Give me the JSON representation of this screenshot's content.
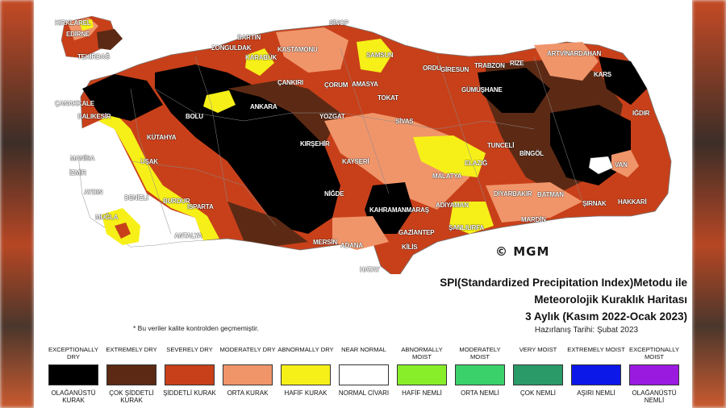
{
  "map": {
    "provinces": [
      {
        "name": "KIRKLAREL"
      },
      {
        "name": "EDİRNE"
      },
      {
        "name": "TEKİRDAĞ"
      },
      {
        "name": "BARTIN"
      },
      {
        "name": "ZONGULDAK"
      },
      {
        "name": "KARABÜK"
      },
      {
        "name": "KASTAMONU"
      },
      {
        "name": "SİNOP"
      },
      {
        "name": "SAMSUN"
      },
      {
        "name": "ORDU"
      },
      {
        "name": "GİRESUN"
      },
      {
        "name": "TRABZON"
      },
      {
        "name": "RİZE"
      },
      {
        "name": "ARTVİN"
      },
      {
        "name": "ARDAHAN"
      },
      {
        "name": "KARS"
      },
      {
        "name": "IĞDIR"
      },
      {
        "name": "AMASYA"
      },
      {
        "name": "ÇORUM"
      },
      {
        "name": "ÇANKIRI"
      },
      {
        "name": "TOKAT"
      },
      {
        "name": "GÜMÜŞHANE"
      },
      {
        "name": "ANKARA"
      },
      {
        "name": "BOLU"
      },
      {
        "name": "ÇANAKKALE"
      },
      {
        "name": "BALIKESİR"
      },
      {
        "name": "YOZGAT"
      },
      {
        "name": "SİVAS"
      },
      {
        "name": "KÜTAHYA"
      },
      {
        "name": "KIRŞEHİR"
      },
      {
        "name": "TUNCELİ"
      },
      {
        "name": "BİNGÖL"
      },
      {
        "name": "MANİSA"
      },
      {
        "name": "UŞAK"
      },
      {
        "name": "KAYSERİ"
      },
      {
        "name": "ELAZIĞ"
      },
      {
        "name": "MALATYA"
      },
      {
        "name": "VAN"
      },
      {
        "name": "İZMİR"
      },
      {
        "name": "AYDIN"
      },
      {
        "name": "DENİZLİ"
      },
      {
        "name": "BURDUR"
      },
      {
        "name": "ISPARTA"
      },
      {
        "name": "NİĞDE"
      },
      {
        "name": "DİYARBAKIR"
      },
      {
        "name": "BATMAN"
      },
      {
        "name": "HAKKARİ"
      },
      {
        "name": "ŞIRNAK"
      },
      {
        "name": "KAHRAMANMARAŞ"
      },
      {
        "name": "ADIYAMAN"
      },
      {
        "name": "ŞANLIURFA"
      },
      {
        "name": "MARDİN"
      },
      {
        "name": "MUĞLA"
      },
      {
        "name": "ANTALYA"
      },
      {
        "name": "MERSİN"
      },
      {
        "name": "ADANA"
      },
      {
        "name": "GAZİANTEP"
      },
      {
        "name": "KİLİS"
      },
      {
        "name": "HATAY"
      }
    ]
  },
  "logo": "© MGM",
  "title": {
    "line1": "SPI(Standardized Precipitation Index)Metodu ile",
    "line2": "Meteorolojik Kuraklık Haritası",
    "line3": "3 Aylık (Kasım 2022-Ocak 2023)",
    "prepared": "Hazırlanış Tarihi: Şubat 2023"
  },
  "note": "* Bu veriler kalite kontrolden geçmemiştir.",
  "legend": [
    {
      "en": "EXCEPTIONALLY DRY",
      "tr": "OLAĞANÜSTÜ KURAK",
      "color": "#000000"
    },
    {
      "en": "EXTREMELY DRY",
      "tr": "ÇOK ŞİDDETLİ KURAK",
      "color": "#5c2a14"
    },
    {
      "en": "SEVERELY DRY",
      "tr": "ŞİDDETLİ KURAK",
      "color": "#c8401a"
    },
    {
      "en": "MODERATELY DRY",
      "tr": "ORTA KURAK",
      "color": "#f0956a"
    },
    {
      "en": "ABNORMALLY DRY",
      "tr": "HAFİF KURAK",
      "color": "#f6f018"
    },
    {
      "en": "NEAR NORMAL",
      "tr": "NORMAL CİVARI",
      "color": "#ffffff"
    },
    {
      "en": "ABNORMALLY MOIST",
      "tr": "HAFİF NEMLİ",
      "color": "#88ee2a"
    },
    {
      "en": "MODERATELY MOIST",
      "tr": "ORTA NEMLİ",
      "color": "#3bd16a"
    },
    {
      "en": "VERY MOIST",
      "tr": "ÇOK NEMLİ",
      "color": "#2a9a68"
    },
    {
      "en": "EXTREMELY MOIST",
      "tr": "AŞIRI NEMLİ",
      "color": "#0c18e8"
    },
    {
      "en": "EXCEPTIONALLY MOIST",
      "tr": "OLAĞANÜSTÜ NEMLİ",
      "color": "#9a1ae0"
    }
  ]
}
